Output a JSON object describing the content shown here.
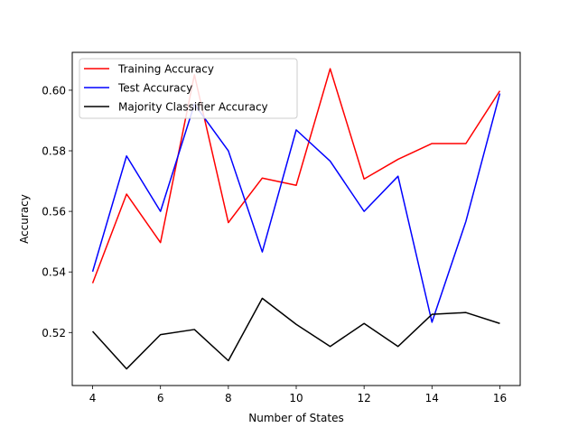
{
  "chart_data": {
    "type": "line",
    "title": "",
    "xlabel": "Number of States",
    "ylabel": "Accuracy",
    "x": [
      4,
      5,
      6,
      7,
      8,
      9,
      10,
      11,
      12,
      13,
      14,
      15,
      16
    ],
    "xlim": [
      3.4,
      16.6
    ],
    "ylim": [
      0.5025,
      0.6125
    ],
    "xticks": [
      4,
      6,
      8,
      10,
      12,
      14,
      16
    ],
    "xtick_labels": [
      "4",
      "6",
      "8",
      "10",
      "12",
      "14",
      "16"
    ],
    "yticks": [
      0.52,
      0.54,
      0.56,
      0.58,
      0.6
    ],
    "ytick_labels": [
      "0.52",
      "0.54",
      "0.56",
      "0.58",
      "0.60"
    ],
    "grid": false,
    "legend_position": "upper-left",
    "series": [
      {
        "name": "Training Accuracy",
        "color": "#ff0000",
        "values": [
          0.5363,
          0.5657,
          0.5497,
          0.6051,
          0.5563,
          0.571,
          0.5686,
          0.6071,
          0.5707,
          0.5772,
          0.5824,
          0.5824,
          0.5998
        ]
      },
      {
        "name": "Test Accuracy",
        "color": "#0000ff",
        "values": [
          0.5401,
          0.5783,
          0.56,
          0.5954,
          0.58,
          0.5466,
          0.5869,
          0.5766,
          0.56,
          0.5716,
          0.5234,
          0.5567,
          0.5989
        ]
      },
      {
        "name": "Majority Classifier Accuracy",
        "color": "#000000",
        "values": [
          0.5204,
          0.508,
          0.5193,
          0.521,
          0.5107,
          0.5313,
          0.5227,
          0.5154,
          0.523,
          0.5154,
          0.526,
          0.5266,
          0.523
        ]
      }
    ]
  }
}
